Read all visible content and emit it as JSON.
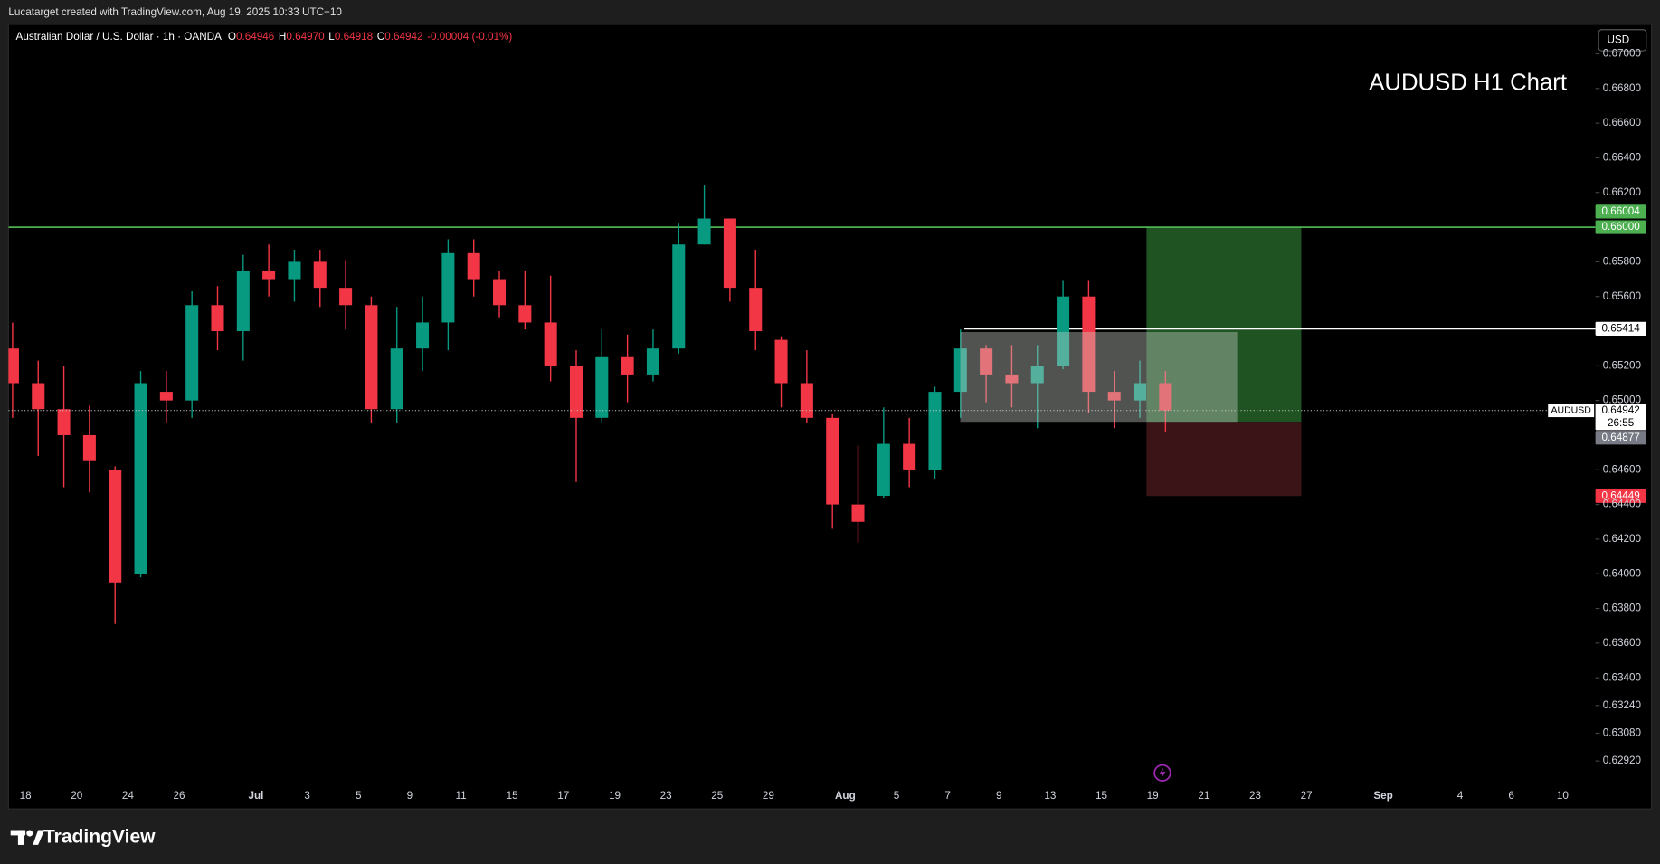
{
  "header": {
    "credit": "Lucatarget created with TradingView.com, Aug 19, 2025 10:33 UTC+10",
    "logo": "TradingView"
  },
  "chart_data": {
    "type": "candlestick",
    "title": "AUDUSD H1 Chart",
    "currency": "USD",
    "legend": {
      "name": "Australian Dollar / U.S. Dollar · 1h · OANDA",
      "fields": [
        {
          "key": "O",
          "value": "0.64946"
        },
        {
          "key": "H",
          "value": "0.64970"
        },
        {
          "key": "L",
          "value": "0.64918"
        },
        {
          "key": "C",
          "value": "0.64942"
        }
      ],
      "change": "-0.00004 (-0.01%)"
    },
    "categories": [
      null,
      "18",
      null,
      "20",
      null,
      "24",
      null,
      "26",
      null,
      null,
      "Jul",
      null,
      "3",
      null,
      "5",
      null,
      "9",
      null,
      "11",
      null,
      "15",
      null,
      "17",
      null,
      "19",
      null,
      "23",
      null,
      "25",
      null,
      "29",
      null,
      null,
      "Aug",
      null,
      "5",
      null,
      "7",
      null,
      "9",
      null,
      "13",
      null,
      "15",
      null,
      "19",
      null,
      "21",
      null,
      "23",
      null,
      "27",
      null,
      null,
      "Sep",
      null,
      null,
      "4",
      null,
      "6",
      null,
      "10"
    ],
    "open": [
      0.653,
      0.651,
      0.6495,
      0.648,
      0.646,
      0.64,
      0.6505,
      0.65,
      0.6555,
      0.654,
      0.6575,
      0.657,
      0.658,
      0.6565,
      0.6555,
      0.6495,
      0.653,
      0.6545,
      0.6585,
      0.657,
      0.6555,
      0.6545,
      0.652,
      0.649,
      0.6525,
      0.6515,
      0.653,
      0.659,
      0.6605,
      0.6565,
      0.6535,
      0.651,
      0.649,
      0.644,
      0.6445,
      0.6475,
      0.646,
      0.6505,
      0.653,
      0.6515,
      0.651,
      0.652,
      0.656,
      0.6505,
      0.65,
      0.651,
      null,
      null,
      null,
      null,
      null,
      null,
      null,
      null,
      null,
      null,
      null,
      null,
      null,
      null,
      null,
      null
    ],
    "high": [
      0.6545,
      0.6523,
      0.652,
      0.6497,
      0.6462,
      0.6517,
      0.6517,
      0.6563,
      0.6566,
      0.6584,
      0.659,
      0.6587,
      0.6587,
      0.6581,
      0.656,
      0.6554,
      0.656,
      0.6593,
      0.6593,
      0.6575,
      0.6575,
      0.6572,
      0.6529,
      0.6541,
      0.6538,
      0.6541,
      0.6602,
      0.6624,
      0.6605,
      0.6587,
      0.6537,
      0.6529,
      0.6492,
      0.6474,
      0.6496,
      0.649,
      0.6508,
      0.6541,
      0.6532,
      0.6532,
      0.6532,
      0.6569,
      0.6569,
      0.6517,
      0.6523,
      0.6517,
      null,
      null,
      null,
      null,
      null,
      null,
      null,
      null,
      null,
      null,
      null,
      null,
      null,
      null,
      null,
      null
    ],
    "low": [
      0.649,
      0.6468,
      0.645,
      0.6447,
      0.6371,
      0.6398,
      0.6487,
      0.649,
      0.6529,
      0.6523,
      0.656,
      0.6557,
      0.6554,
      0.6541,
      0.6487,
      0.6487,
      0.6517,
      0.6529,
      0.656,
      0.6548,
      0.6541,
      0.6511,
      0.6453,
      0.6487,
      0.6499,
      0.6511,
      0.6527,
      0.659,
      0.6557,
      0.6529,
      0.6496,
      0.6487,
      0.6426,
      0.6418,
      0.6444,
      0.645,
      0.6455,
      0.649,
      0.6499,
      0.6496,
      0.6484,
      0.6518,
      0.6493,
      0.6484,
      0.649,
      0.6482,
      null,
      null,
      null,
      null,
      null,
      null,
      null,
      null,
      null,
      null,
      null,
      null,
      null,
      null,
      null,
      null
    ],
    "close": [
      0.651,
      0.6495,
      0.648,
      0.6465,
      0.6395,
      0.651,
      0.65,
      0.6555,
      0.654,
      0.6575,
      0.657,
      0.658,
      0.6565,
      0.6555,
      0.6495,
      0.653,
      0.6545,
      0.6585,
      0.657,
      0.6555,
      0.6545,
      0.652,
      0.649,
      0.6525,
      0.6515,
      0.653,
      0.659,
      0.6605,
      0.6565,
      0.654,
      0.651,
      0.649,
      0.644,
      0.643,
      0.6475,
      0.646,
      0.6505,
      0.653,
      0.6515,
      0.651,
      0.652,
      0.656,
      0.6505,
      0.65,
      0.651,
      0.64942,
      null,
      null,
      null,
      null,
      null,
      null,
      null,
      null,
      null,
      null,
      null,
      null,
      null,
      null,
      null,
      null
    ],
    "up_color": "#089981",
    "down_color": "#f23645",
    "ylim": [
      0.6279,
      0.6717
    ],
    "yticks": [
      {
        "value": 0.67,
        "label": "0.67000"
      },
      {
        "value": 0.668,
        "label": "0.66800"
      },
      {
        "value": 0.666,
        "label": "0.66600"
      },
      {
        "value": 0.664,
        "label": "0.66400"
      },
      {
        "value": 0.662,
        "label": "0.66200"
      },
      {
        "value": 0.658,
        "label": "0.65800"
      },
      {
        "value": 0.656,
        "label": "0.65600"
      },
      {
        "value": 0.652,
        "label": "0.65200"
      },
      {
        "value": 0.65,
        "label": "0.65000"
      },
      {
        "value": 0.646,
        "label": "0.64600"
      },
      {
        "value": 0.644,
        "label": "0.64400"
      },
      {
        "value": 0.642,
        "label": "0.64200"
      },
      {
        "value": 0.64,
        "label": "0.64000"
      },
      {
        "value": 0.638,
        "label": "0.63800"
      },
      {
        "value": 0.636,
        "label": "0.63600"
      },
      {
        "value": 0.634,
        "label": "0.63400"
      },
      {
        "value": 0.6324,
        "label": "0.63240"
      },
      {
        "value": 0.6308,
        "label": "0.63080"
      },
      {
        "value": 0.6292,
        "label": "0.62920"
      }
    ],
    "grid": false,
    "horizontal_lines": [
      {
        "value": 0.66,
        "color": "#4caf50"
      },
      {
        "value": 0.65414,
        "color": "#ffffff"
      }
    ],
    "range_box": {
      "high": 0.65395,
      "low": 0.64877,
      "color": "#c8d0c8"
    },
    "position": {
      "target": 0.66004,
      "entry": 0.64877,
      "stop": 0.64449,
      "profit_color": "#1f5322",
      "loss_color": "#3b1418"
    },
    "price_tags": [
      {
        "value": 0.66004,
        "label": "0.66004",
        "color": "#4caf50"
      },
      {
        "value": 0.66,
        "label": "0.66000",
        "color": "#4caf50"
      },
      {
        "value": 0.65414,
        "label": "0.65414",
        "color": "#ffffff"
      },
      {
        "value": 0.64877,
        "label": "0.64877",
        "color": "#787b86"
      },
      {
        "value": 0.64449,
        "label": "0.64449",
        "color": "#f23645"
      }
    ],
    "last_price": {
      "value": 0.64942,
      "label": "0.64942",
      "symbol": "AUDUSD",
      "countdown": "26:55"
    }
  }
}
